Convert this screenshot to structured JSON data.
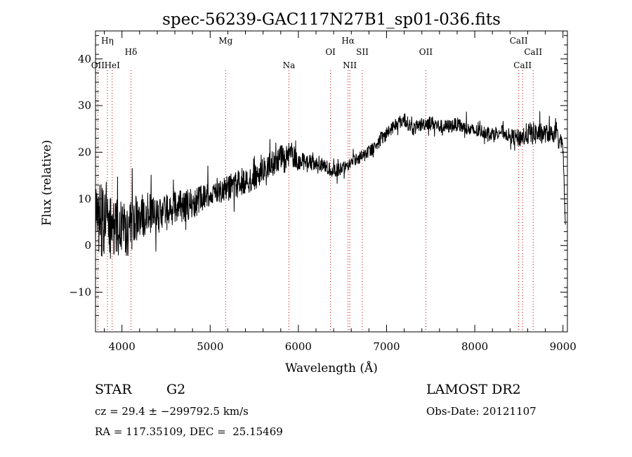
{
  "chart_data": {
    "type": "line",
    "title": "spec-56239-GAC117N27B1_sp01-036.fits",
    "xlabel": "Wavelength (Å)",
    "ylabel": "Flux (relative)",
    "xlim": [
      3700,
      9050
    ],
    "ylim": [
      -18.5,
      46
    ],
    "x_ticks": [
      4000,
      5000,
      6000,
      7000,
      8000,
      9000
    ],
    "y_ticks": [
      -10,
      0,
      10,
      20,
      30,
      40
    ],
    "grid": false,
    "line_color": "#000000",
    "marker_color": "#cc0000",
    "series": [
      {
        "x": [
          3700,
          3750,
          3800,
          3850,
          3900,
          3950,
          4000,
          4050,
          4100,
          4150,
          4200,
          4300,
          4400,
          4500,
          4600,
          4700,
          4800,
          4900,
          5000,
          5100,
          5200,
          5300,
          5400,
          5500,
          5600,
          5700,
          5800,
          5850,
          5900,
          5950,
          6000,
          6100,
          6200,
          6300,
          6400,
          6500,
          6562,
          6600,
          6700,
          6800,
          6900,
          7000,
          7100,
          7200,
          7300,
          7400,
          7500,
          7600,
          7700,
          7800,
          7900,
          8000,
          8100,
          8200,
          8300,
          8400,
          8500,
          8600,
          8700,
          8800,
          8900,
          8950,
          9000,
          9030
        ],
        "y": [
          5,
          4,
          6,
          3,
          5,
          4,
          5,
          3,
          4,
          6,
          6,
          7,
          6.5,
          7,
          8,
          8.5,
          9,
          10,
          11,
          12,
          12.5,
          13,
          14,
          14.5,
          16,
          17.5,
          19,
          18,
          20,
          19,
          18,
          18,
          17.5,
          17,
          16,
          16.5,
          17,
          18,
          19,
          20,
          22,
          24,
          26,
          27,
          25,
          26,
          26.5,
          25.5,
          25.5,
          26,
          25,
          24.5,
          24.5,
          24,
          24.5,
          23.5,
          23,
          24,
          24,
          24,
          24,
          23,
          21,
          3
        ],
        "noise": [
          9,
          9,
          8,
          7,
          7,
          6.5,
          6,
          6,
          6,
          5,
          5,
          4.5,
          4.5,
          4,
          4,
          3.5,
          3.5,
          3,
          3,
          3,
          3,
          3,
          3,
          2.8,
          2.8,
          2.8,
          2.8,
          2.8,
          2.8,
          2.5,
          2,
          1.8,
          1.5,
          1.5,
          1.5,
          1.5,
          1.2,
          1.2,
          1.5,
          1.5,
          1.5,
          1.5,
          1.5,
          1.5,
          1.5,
          1.5,
          1.5,
          1.5,
          1.5,
          1.5,
          1.5,
          1.5,
          1.5,
          1.5,
          1.5,
          1.5,
          2,
          2.5,
          2.5,
          2,
          2,
          2,
          2,
          0
        ]
      }
    ],
    "line_markers": [
      {
        "label": "OII",
        "x": 3727,
        "row": 2
      },
      {
        "label": "Hη",
        "x": 3835,
        "row": 0
      },
      {
        "label": "HeI",
        "x": 3889,
        "row": 2
      },
      {
        "label": "Hδ",
        "x": 4102,
        "row": 1
      },
      {
        "label": "Mg",
        "x": 5175,
        "row": 0
      },
      {
        "label": "Na",
        "x": 5893,
        "row": 2
      },
      {
        "label": "OI",
        "x": 6364,
        "row": 1
      },
      {
        "label": "Hα",
        "x": 6563,
        "row": 0
      },
      {
        "label": "NII",
        "x": 6583,
        "row": 2
      },
      {
        "label": "SII",
        "x": 6725,
        "row": 1
      },
      {
        "label": "OII",
        "x": 7445,
        "row": 1
      },
      {
        "label": "CaII",
        "x": 8498,
        "row": 0
      },
      {
        "label": "CaII",
        "x": 8542,
        "row": 2
      },
      {
        "label": "CaII",
        "x": 8662,
        "row": 1
      }
    ]
  },
  "info": {
    "object_class": "STAR",
    "subclass": "G2",
    "survey": "LAMOST DR2",
    "velocity": "cz = 29.4 ± −299792.5 km/s",
    "obs_date": "Obs-Date: 20121107",
    "coords": "RA = 117.35109, DEC =  25.15469"
  }
}
